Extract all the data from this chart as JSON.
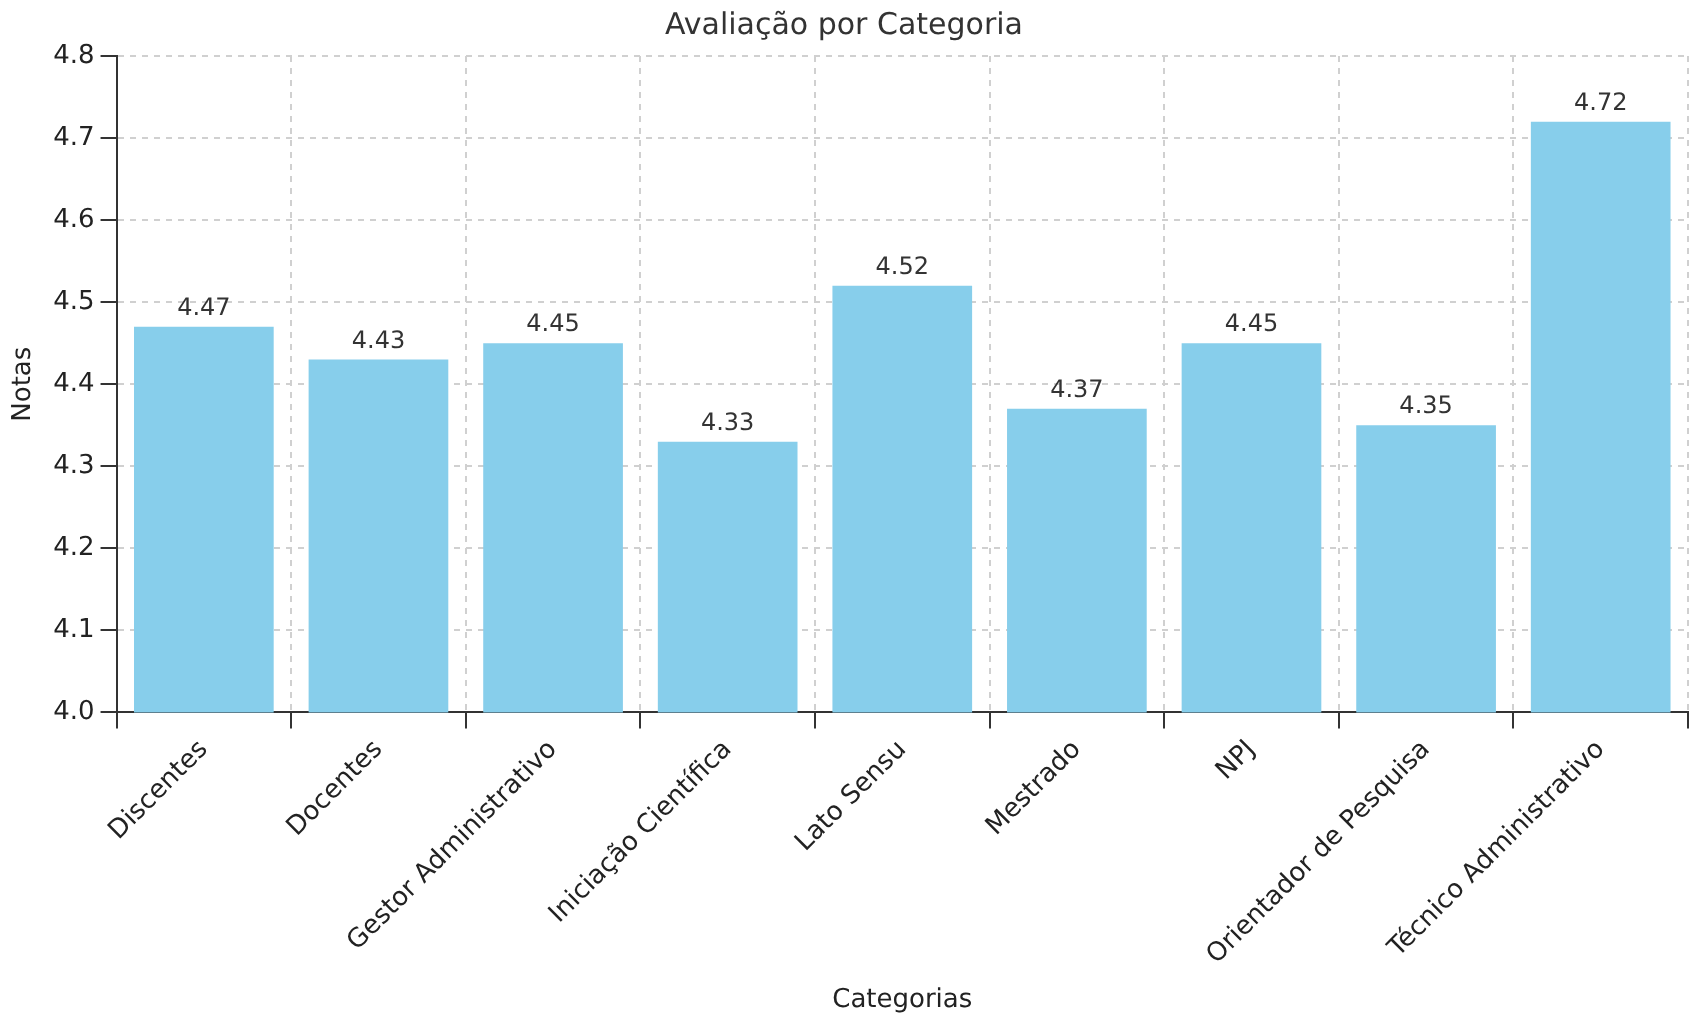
{
  "chart_data": {
    "type": "bar",
    "title": "Avaliação por Categoria",
    "xlabel": "Categorias",
    "ylabel": "Notas",
    "categories": [
      "Discentes",
      "Docentes",
      "Gestor Administrativo",
      "Iniciação Científica",
      "Lato Sensu",
      "Mestrado",
      "NPJ",
      "Orientador de Pesquisa",
      "Técnico Administrativo"
    ],
    "values": [
      4.47,
      4.43,
      4.45,
      4.33,
      4.52,
      4.37,
      4.45,
      4.35,
      4.72
    ],
    "color": "#87ceeb",
    "ylim": [
      4.0,
      4.8
    ],
    "yticks": [
      {
        "value": 4.0,
        "label": "4.0"
      },
      4.1,
      4.2,
      4.3,
      4.4,
      4.5,
      4.6,
      4.7,
      4.8
    ],
    "grid": true,
    "data_labels": true,
    "legend": false
  }
}
